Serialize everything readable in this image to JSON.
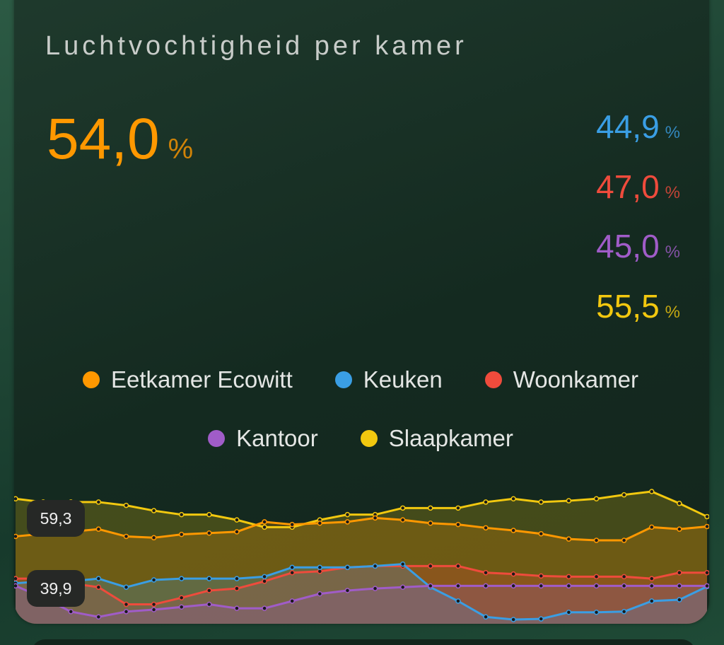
{
  "chart_data": {
    "type": "line",
    "title": "Luchtvochtigheid per kamer",
    "unit": "%",
    "ylim": [
      39.9,
      59.3
    ],
    "max_label": "59,3",
    "min_label": "39,9",
    "series": [
      {
        "name": "Eetkamer Ecowitt",
        "color": "#ff9800",
        "state": "54,0",
        "values": [
          52.5,
          52.9,
          53.2,
          53.6,
          52.5,
          52.3,
          52.8,
          53.0,
          53.2,
          54.7,
          54.3,
          54.5,
          54.7,
          55.3,
          55.0,
          54.5,
          54.3,
          53.8,
          53.4,
          52.9,
          52.1,
          51.9,
          51.9,
          53.9,
          53.6,
          54.0
        ]
      },
      {
        "name": "Keuken",
        "color": "#3a9ee4",
        "state": "44,9",
        "values": [
          45.4,
          45.7,
          45.7,
          46.1,
          44.8,
          45.9,
          46.1,
          46.1,
          46.1,
          46.4,
          47.8,
          47.8,
          47.8,
          48.0,
          48.3,
          44.8,
          42.7,
          40.3,
          39.9,
          40.0,
          41.0,
          41.0,
          41.1,
          42.7,
          42.9,
          44.9
        ]
      },
      {
        "name": "Woonkamer",
        "color": "#ef4b3c",
        "state": "47,0",
        "values": [
          46.1,
          46.1,
          45.4,
          44.8,
          42.2,
          42.2,
          43.2,
          44.3,
          44.6,
          45.7,
          47.0,
          47.2,
          47.8,
          48.0,
          48.0,
          48.0,
          48.0,
          47.0,
          46.8,
          46.5,
          46.4,
          46.4,
          46.4,
          46.1,
          47.0,
          47.0
        ]
      },
      {
        "name": "Kantoor",
        "color": "#a05cc8",
        "state": "45,0",
        "values": [
          45.0,
          43.2,
          41.1,
          40.3,
          41.1,
          41.4,
          41.8,
          42.2,
          41.6,
          41.6,
          42.7,
          43.8,
          44.3,
          44.6,
          44.8,
          45.0,
          45.0,
          45.0,
          45.0,
          45.0,
          45.0,
          45.0,
          45.0,
          45.0,
          45.0,
          45.0
        ]
      },
      {
        "name": "Slaapkamer",
        "color": "#f2c80f",
        "state": "55,5",
        "values": [
          58.2,
          57.7,
          57.7,
          57.7,
          57.2,
          56.4,
          55.8,
          55.8,
          55.0,
          53.9,
          53.9,
          55.0,
          55.8,
          55.8,
          56.8,
          56.8,
          56.8,
          57.7,
          58.2,
          57.7,
          57.9,
          58.2,
          58.8,
          59.3,
          57.5,
          55.5
        ]
      }
    ]
  }
}
